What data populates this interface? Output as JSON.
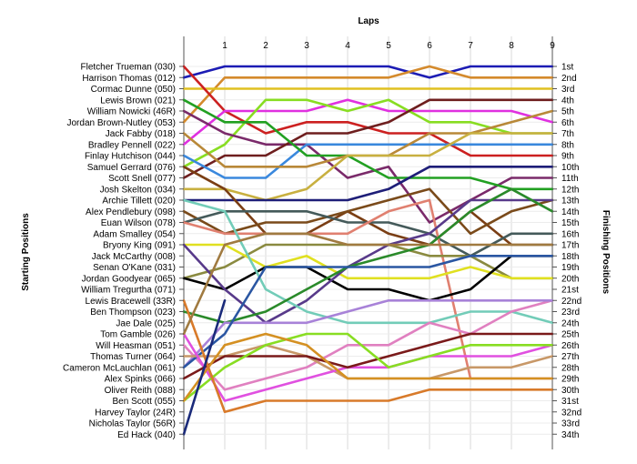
{
  "chart_data": {
    "type": "line",
    "title": "",
    "xlabel": "Laps",
    "ylabel_left": "Starting Positions",
    "ylabel_right": "Finishing Positions",
    "x": [
      0,
      1,
      2,
      3,
      4,
      5,
      6,
      7,
      8,
      9
    ],
    "x_tick_labels": [
      "1",
      "2",
      "3",
      "4",
      "5",
      "6",
      "7",
      "8",
      "9"
    ],
    "xlim": [
      0,
      9
    ],
    "y_range": [
      1,
      34
    ],
    "grid": true,
    "starting_positions": [
      "Fletcher Trueman (030)",
      "Harrison Thomas (012)",
      "Cormac Dunne (050)",
      "Lewis Brown (021)",
      "William Nowicki (46R)",
      "Jordan Brown-Nutley (053)",
      "Jack Fabby (018)",
      "Bradley Pennell (022)",
      "Finlay Hutchison (044)",
      "Samuel Gerrard (076)",
      "Scott Snell (077)",
      "Josh Skelton (034)",
      "Archie Tillett (020)",
      "Alex Pendlebury (098)",
      "Euan Wilson (078)",
      "Adam Smalley (054)",
      "Bryony King (091)",
      "Jack McCarthy (008)",
      "Senan O'Kane (031)",
      "Jordan Goodyear (065)",
      "William Tregurtha (071)",
      "Lewis Bracewell (33R)",
      "Ben Thompson (023)",
      "Jae Dale (025)",
      "Tom Gamble (026)",
      "Will Heasman (051)",
      "Thomas Turner (064)",
      "Cameron McLauchlan (061)",
      "Alex Spinks (066)",
      "Oliver Reith (088)",
      "Ben Scott (055)",
      "Harvey Taylor (24R)",
      "Nicholas Taylor (56R)",
      "Ed Hack (040)"
    ],
    "finishing_positions": [
      "1st",
      "2nd",
      "3rd",
      "4th",
      "5th",
      "6th",
      "7th",
      "8th",
      "9th",
      "10th",
      "11th",
      "12th",
      "13th",
      "14th",
      "15th",
      "16th",
      "17th",
      "18th",
      "19th",
      "20th",
      "21st",
      "22nd",
      "23rd",
      "24th",
      "25th",
      "26th",
      "27th",
      "28th",
      "29th",
      "30th",
      "31st",
      "32nd",
      "33rd",
      "34th"
    ],
    "series": [
      {
        "color": "#1c1cb4",
        "values": [
          2,
          1,
          1,
          1,
          1,
          1,
          2,
          1,
          1,
          1
        ]
      },
      {
        "color": "#d48a2c",
        "values": [
          6,
          2,
          2,
          2,
          2,
          2,
          1,
          2,
          2,
          2
        ]
      },
      {
        "color": "#e0c020",
        "values": [
          3,
          3,
          3,
          3,
          3,
          3,
          3,
          3,
          3,
          3
        ]
      },
      {
        "color": "#cc2020",
        "values": [
          1,
          5,
          7,
          6,
          6,
          7,
          7,
          9,
          9,
          9
        ]
      },
      {
        "color": "#e030e0",
        "values": [
          8,
          5,
          5,
          5,
          4,
          5,
          5,
          5,
          5,
          6
        ]
      },
      {
        "color": "#88dd22",
        "values": [
          10,
          8,
          4,
          4,
          5,
          4,
          6,
          6,
          7,
          7
        ]
      },
      {
        "color": "#7a2a6a",
        "values": [
          5,
          7,
          8,
          8,
          11,
          10,
          15,
          13,
          11,
          11
        ]
      },
      {
        "color": "#6e1e1e",
        "values": [
          11,
          9,
          9,
          7,
          7,
          6,
          4,
          4,
          4,
          4
        ]
      },
      {
        "color": "#3a88dd",
        "values": [
          9,
          11,
          11,
          8,
          8,
          8,
          8,
          8,
          8,
          8
        ]
      },
      {
        "color": "#22a022",
        "values": [
          4,
          6,
          6,
          9,
          9,
          11,
          11,
          11,
          12,
          12
        ]
      },
      {
        "color": "#b88838",
        "values": [
          7,
          10,
          10,
          10,
          9,
          9,
          7,
          7,
          6,
          5
        ]
      },
      {
        "color": "#c8b040",
        "values": [
          12,
          12,
          13,
          12,
          9,
          9,
          9,
          7,
          7,
          7
        ]
      },
      {
        "color": "#1e1e78",
        "values": [
          13,
          13,
          13,
          13,
          13,
          12,
          10,
          10,
          10,
          10
        ]
      },
      {
        "color": "#7a3e14",
        "values": [
          10,
          12,
          16,
          16,
          14,
          16,
          17,
          14,
          17,
          17
        ]
      },
      {
        "color": "#7a4a1a",
        "values": [
          14,
          16,
          15,
          15,
          14,
          13,
          12,
          16,
          14,
          13
        ]
      },
      {
        "color": "#445a5a",
        "values": [
          15,
          14,
          14,
          14,
          15,
          15,
          16,
          18,
          16,
          16
        ]
      },
      {
        "color": "#e08070",
        "values": [
          15,
          16,
          16,
          16,
          16,
          14,
          13,
          29,
          29,
          29
        ]
      },
      {
        "color": "#8a8a40",
        "values": [
          20,
          19,
          17,
          17,
          17,
          17,
          18,
          18,
          20,
          20
        ]
      },
      {
        "color": "#e0e020",
        "values": [
          17,
          17,
          19,
          18,
          20,
          20,
          20,
          19,
          20,
          20
        ]
      },
      {
        "color": "#000000",
        "values": [
          20,
          21,
          19,
          19,
          21,
          21,
          22,
          21,
          18,
          18
        ]
      },
      {
        "color": "#583a8a",
        "values": [
          17,
          21,
          24,
          22,
          19,
          17,
          16,
          13,
          13,
          13
        ]
      },
      {
        "color": "#72ccb8",
        "values": [
          13,
          14,
          21,
          23,
          24,
          24,
          24,
          23,
          23,
          24
        ]
      },
      {
        "color": "#e080c0",
        "values": [
          26,
          30,
          29,
          28,
          26,
          26,
          24,
          25,
          23,
          22
        ]
      },
      {
        "color": "#2a8a2a",
        "values": [
          23,
          24,
          23,
          21,
          19,
          18,
          17,
          14,
          12,
          14
        ]
      },
      {
        "color": "#a882d8",
        "values": [
          28,
          24,
          24,
          24,
          23,
          22,
          22,
          22,
          22,
          22
        ]
      },
      {
        "color": "#2a56a2",
        "values": [
          28,
          25,
          19,
          19,
          19,
          19,
          19,
          18,
          18,
          18
        ]
      },
      {
        "color": "#c89868",
        "values": [
          27,
          27,
          26,
          27,
          29,
          29,
          29,
          28,
          28,
          27
        ]
      },
      {
        "color": "#e050e0",
        "values": [
          25,
          31,
          30,
          29,
          28,
          28,
          27,
          27,
          27,
          26
        ]
      },
      {
        "color": "#7a1a1a",
        "values": [
          29,
          27,
          27,
          27,
          28,
          27,
          26,
          25,
          25,
          25
        ]
      },
      {
        "color": "#88dd22",
        "values": [
          31,
          28,
          26,
          25,
          25,
          28,
          27,
          26,
          26,
          26
        ]
      },
      {
        "color": "#d49022",
        "values": [
          31,
          26,
          25,
          26,
          29,
          29,
          29,
          29,
          29,
          29
        ]
      },
      {
        "color": "#d87a2a",
        "values": [
          22,
          32,
          31,
          31,
          31,
          31,
          30,
          30,
          30,
          30
        ]
      },
      {
        "color": "#1a2a7a",
        "values": [
          34,
          22,
          null,
          null,
          null,
          null,
          null,
          null,
          null,
          null
        ]
      },
      {
        "color": "#a07a40",
        "values": [
          25,
          17,
          16,
          16,
          17,
          17,
          17,
          17,
          17,
          17
        ]
      }
    ]
  }
}
